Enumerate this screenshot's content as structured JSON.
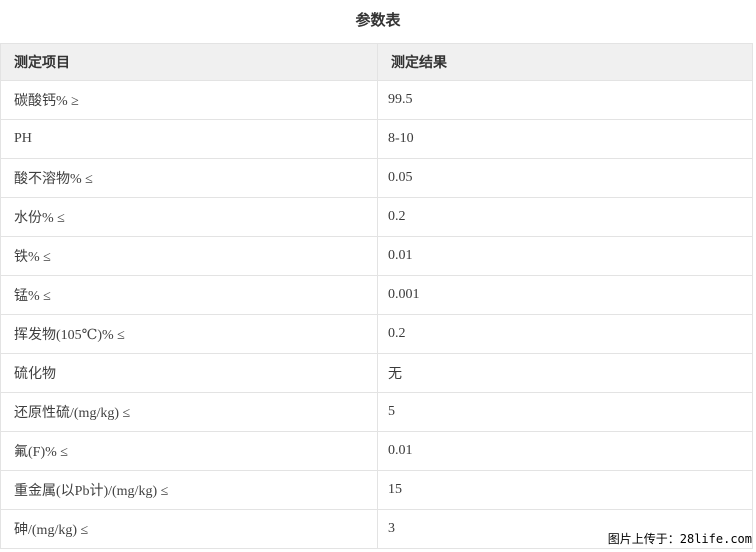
{
  "page": {
    "title": "参数表"
  },
  "table": {
    "headers": [
      "测定项目",
      "测定结果"
    ],
    "rows": [
      {
        "item": "碳酸钙% ≥",
        "result": "99.5"
      },
      {
        "item": "PH",
        "result": "8-10"
      },
      {
        "item": "酸不溶物% ≤",
        "result": "0.05"
      },
      {
        "item": "水份% ≤",
        "result": "0.2"
      },
      {
        "item": "铁% ≤",
        "result": "0.01"
      },
      {
        "item": "锰% ≤",
        "result": "0.001"
      },
      {
        "item": "挥发物(105℃)% ≤",
        "result": "0.2"
      },
      {
        "item": "硫化物",
        "result": "无"
      },
      {
        "item": "还原性硫/(mg/kg) ≤",
        "result": "5"
      },
      {
        "item": "氟(F)% ≤",
        "result": "0.01"
      },
      {
        "item": "重金属(以Pb计)/(mg/kg) ≤",
        "result": "15"
      },
      {
        "item": "砷/(mg/kg) ≤",
        "result": "3"
      }
    ]
  },
  "watermark": {
    "text": "图片上传于：28life.com"
  },
  "colors": {
    "header_bg": "#f0f0f0",
    "border": "#e3e3e3",
    "header_text": "#333333",
    "cell_text": "#404040",
    "watermark_text": "#000000",
    "page_bg": "#ffffff"
  }
}
